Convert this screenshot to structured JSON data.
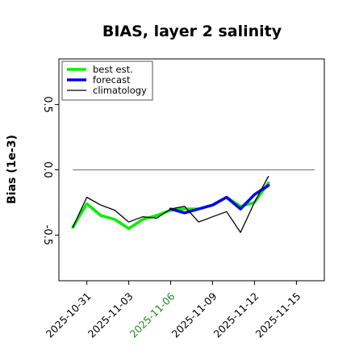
{
  "chart_data": {
    "type": "line",
    "title": "BIAS, layer 2 salinity",
    "ylabel": "Bias (1e-3)",
    "xlabel": "",
    "x_min": "2025-10-29",
    "x_max": "2025-11-17",
    "ylim": [
      -0.85,
      0.85
    ],
    "yticks": [
      {
        "value": -0.5,
        "label": "-0.5"
      },
      {
        "value": 0.0,
        "label": "0.0"
      },
      {
        "value": 0.5,
        "label": "0.5"
      }
    ],
    "xticks": [
      {
        "date": "2025-10-31",
        "label": "2025-10-31",
        "color": "#000000"
      },
      {
        "date": "2025-11-03",
        "label": "2025-11-03",
        "color": "#000000"
      },
      {
        "date": "2025-11-06",
        "label": "2025-11-06",
        "color": "#228b22"
      },
      {
        "date": "2025-11-09",
        "label": "2025-11-09",
        "color": "#000000"
      },
      {
        "date": "2025-11-12",
        "label": "2025-11-12",
        "color": "#000000"
      },
      {
        "date": "2025-11-15",
        "label": "2025-11-15",
        "color": "#000000"
      }
    ],
    "legend_position": "top-left",
    "zero_line": {
      "y": 0.0,
      "color": "#808080"
    },
    "series": [
      {
        "name": "best est.",
        "color": "#00ee00",
        "line_width": 3.5,
        "points": [
          [
            "2025-10-30",
            -0.44
          ],
          [
            "2025-10-31",
            -0.26
          ],
          [
            "2025-11-01",
            -0.35
          ],
          [
            "2025-11-02",
            -0.38
          ],
          [
            "2025-11-03",
            -0.45
          ],
          [
            "2025-11-04",
            -0.38
          ],
          [
            "2025-11-05",
            -0.35
          ],
          [
            "2025-11-06",
            -0.31
          ],
          [
            "2025-11-07",
            -0.3
          ],
          [
            "2025-11-08",
            -0.3
          ],
          [
            "2025-11-09",
            -0.27
          ],
          [
            "2025-11-10",
            -0.21
          ],
          [
            "2025-11-11",
            -0.28
          ],
          [
            "2025-11-12",
            -0.25
          ],
          [
            "2025-11-13",
            -0.1
          ]
        ]
      },
      {
        "name": "forecast",
        "color": "#0000ee",
        "line_width": 3.5,
        "points": [
          [
            "2025-11-06",
            -0.3
          ],
          [
            "2025-11-07",
            -0.33
          ],
          [
            "2025-11-08",
            -0.3
          ],
          [
            "2025-11-09",
            -0.27
          ],
          [
            "2025-11-10",
            -0.21
          ],
          [
            "2025-11-11",
            -0.3
          ],
          [
            "2025-11-12",
            -0.19
          ],
          [
            "2025-11-13",
            -0.12
          ]
        ]
      },
      {
        "name": "climatology",
        "color": "#000000",
        "line_width": 1.3,
        "points": [
          [
            "2025-10-30",
            -0.44
          ],
          [
            "2025-10-31",
            -0.21
          ],
          [
            "2025-11-01",
            -0.27
          ],
          [
            "2025-11-02",
            -0.31
          ],
          [
            "2025-11-03",
            -0.4
          ],
          [
            "2025-11-04",
            -0.36
          ],
          [
            "2025-11-05",
            -0.37
          ],
          [
            "2025-11-06",
            -0.3
          ],
          [
            "2025-11-07",
            -0.28
          ],
          [
            "2025-11-08",
            -0.4
          ],
          [
            "2025-11-09",
            -0.36
          ],
          [
            "2025-11-10",
            -0.32
          ],
          [
            "2025-11-11",
            -0.48
          ],
          [
            "2025-11-12",
            -0.25
          ],
          [
            "2025-11-13",
            -0.05
          ]
        ]
      }
    ]
  }
}
